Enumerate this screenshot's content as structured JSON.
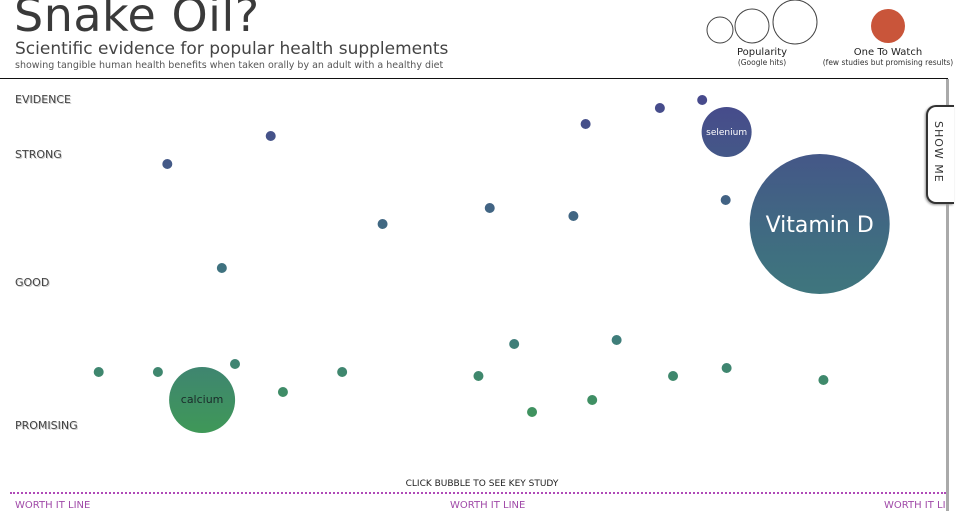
{
  "header": {
    "title": "Snake Oil?",
    "subtitle": "Scientific evidence for popular health supplements",
    "description": "showing tangible human health benefits when taken orally by an adult with a healthy diet"
  },
  "legend": {
    "popularity_label": "Popularity",
    "popularity_sub": "(Google hits)",
    "watch_label": "One To Watch",
    "watch_sub": "(few studies but promising results)",
    "watch_color": "#c9553a"
  },
  "show_me": "SHOW ME",
  "hint": "CLICK BUBBLE TO SEE KEY STUDY",
  "worth_line": "WORTH IT LINE",
  "colors": {
    "strong": "#474a8c",
    "good": "#3f7d7b",
    "promising": "#3f9a55"
  },
  "chart_data": {
    "type": "scatter",
    "title": "Snake Oil?",
    "ylabel": "EVIDENCE",
    "y_tick_labels": [
      {
        "label": "STRONG",
        "value": 81
      },
      {
        "label": "GOOD",
        "value": 49
      },
      {
        "label": "PROMISING",
        "value": 13
      }
    ],
    "ylim": [
      0,
      100
    ],
    "xlim": [
      0,
      100
    ],
    "points": [
      {
        "x": 17.8,
        "y": 79,
        "size": 5
      },
      {
        "x": 28.8,
        "y": 86,
        "size": 5
      },
      {
        "x": 40.7,
        "y": 64,
        "size": 5
      },
      {
        "x": 52.1,
        "y": 68,
        "size": 5
      },
      {
        "x": 61,
        "y": 66,
        "size": 5
      },
      {
        "x": 62.3,
        "y": 89,
        "size": 5
      },
      {
        "x": 70.2,
        "y": 93,
        "size": 5
      },
      {
        "x": 74.7,
        "y": 95,
        "size": 5
      },
      {
        "x": 77.2,
        "y": 70,
        "size": 5
      },
      {
        "x": 77.3,
        "y": 87,
        "size": 25,
        "label": "selenium"
      },
      {
        "x": 87.2,
        "y": 64,
        "size": 70,
        "label": "Vitamin D"
      },
      {
        "x": 23.6,
        "y": 53,
        "size": 5
      },
      {
        "x": 10.5,
        "y": 27,
        "size": 5
      },
      {
        "x": 16.8,
        "y": 27,
        "size": 5
      },
      {
        "x": 25,
        "y": 29,
        "size": 5
      },
      {
        "x": 21.5,
        "y": 20,
        "size": 33,
        "label": "calcium"
      },
      {
        "x": 30.1,
        "y": 22,
        "size": 5
      },
      {
        "x": 36.4,
        "y": 27,
        "size": 5
      },
      {
        "x": 50.9,
        "y": 26,
        "size": 5
      },
      {
        "x": 54.7,
        "y": 34,
        "size": 5
      },
      {
        "x": 56.6,
        "y": 17,
        "size": 5
      },
      {
        "x": 63,
        "y": 20,
        "size": 5
      },
      {
        "x": 65.6,
        "y": 35,
        "size": 5
      },
      {
        "x": 71.6,
        "y": 26,
        "size": 5
      },
      {
        "x": 77.3,
        "y": 28,
        "size": 5
      },
      {
        "x": 87.6,
        "y": 25,
        "size": 5
      }
    ]
  }
}
